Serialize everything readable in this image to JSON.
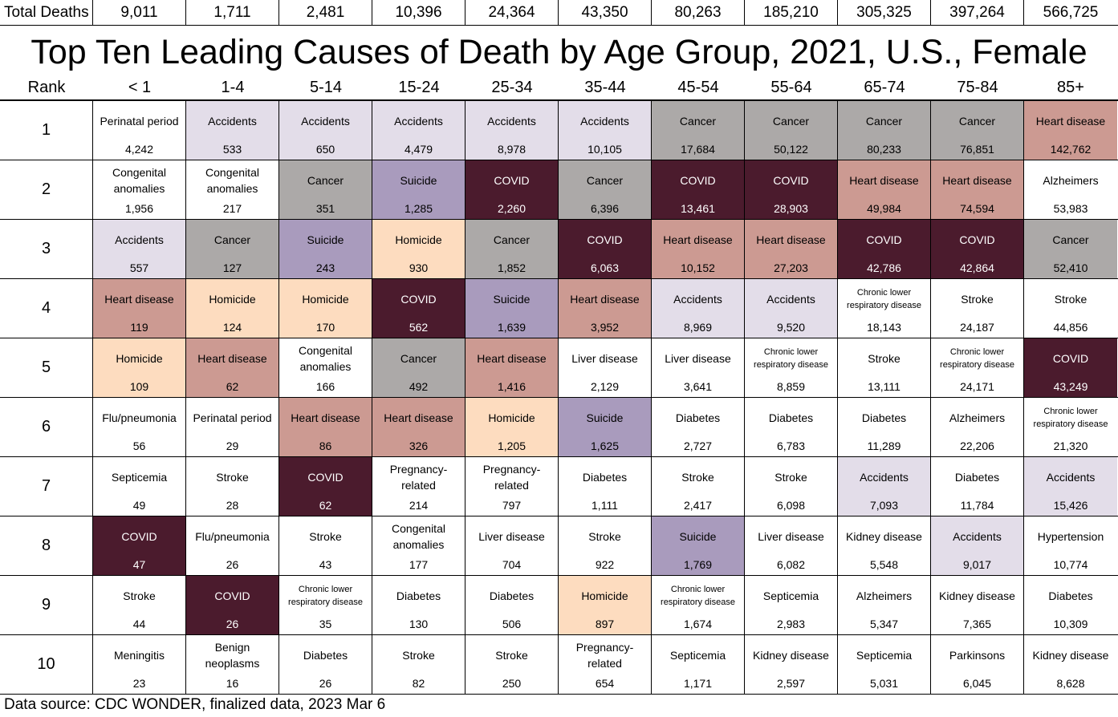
{
  "total_label": "Total Deaths",
  "title": "Top Ten Leading Causes of Death by Age Group, 2021, U.S., Female",
  "rank_header": "Rank",
  "source": "Data source: CDC WONDER, finalized data, 2023 Mar 6",
  "colors": {
    "Accidents": "#e3dde9",
    "Cancer": "#aca9a8",
    "Heart disease": "#cc9a92",
    "COVID": "#4b1b2d",
    "Suicide": "#a99bbd",
    "Homicide": "#fddcbf",
    "default": "#ffffff"
  },
  "chart_data": {
    "type": "table",
    "title": "Top Ten Leading Causes of Death by Age Group, 2021, U.S., Female",
    "age_groups": [
      "< 1",
      "1-4",
      "5-14",
      "15-24",
      "25-34",
      "35-44",
      "45-54",
      "55-64",
      "65-74",
      "75-84",
      "85+"
    ],
    "total_deaths": [
      "9,011",
      "1,711",
      "2,481",
      "10,396",
      "24,364",
      "43,350",
      "80,263",
      "185,210",
      "305,325",
      "397,264",
      "566,725"
    ],
    "ranks": [
      {
        "rank": "1",
        "cells": [
          {
            "cause": "Perinatal period",
            "deaths": "4,242"
          },
          {
            "cause": "Accidents",
            "deaths": "533"
          },
          {
            "cause": "Accidents",
            "deaths": "650"
          },
          {
            "cause": "Accidents",
            "deaths": "4,479"
          },
          {
            "cause": "Accidents",
            "deaths": "8,978"
          },
          {
            "cause": "Accidents",
            "deaths": "10,105"
          },
          {
            "cause": "Cancer",
            "deaths": "17,684"
          },
          {
            "cause": "Cancer",
            "deaths": "50,122"
          },
          {
            "cause": "Cancer",
            "deaths": "80,233"
          },
          {
            "cause": "Cancer",
            "deaths": "76,851"
          },
          {
            "cause": "Heart disease",
            "deaths": "142,762"
          }
        ]
      },
      {
        "rank": "2",
        "cells": [
          {
            "cause": "Congenital anomalies",
            "deaths": "1,956"
          },
          {
            "cause": "Congenital anomalies",
            "deaths": "217"
          },
          {
            "cause": "Cancer",
            "deaths": "351"
          },
          {
            "cause": "Suicide",
            "deaths": "1,285"
          },
          {
            "cause": "COVID",
            "deaths": "2,260"
          },
          {
            "cause": "Cancer",
            "deaths": "6,396"
          },
          {
            "cause": "COVID",
            "deaths": "13,461"
          },
          {
            "cause": "COVID",
            "deaths": "28,903"
          },
          {
            "cause": "Heart disease",
            "deaths": "49,984"
          },
          {
            "cause": "Heart disease",
            "deaths": "74,594"
          },
          {
            "cause": "Alzheimers",
            "deaths": "53,983"
          }
        ]
      },
      {
        "rank": "3",
        "cells": [
          {
            "cause": "Accidents",
            "deaths": "557"
          },
          {
            "cause": "Cancer",
            "deaths": "127"
          },
          {
            "cause": "Suicide",
            "deaths": "243"
          },
          {
            "cause": "Homicide",
            "deaths": "930"
          },
          {
            "cause": "Cancer",
            "deaths": "1,852"
          },
          {
            "cause": "COVID",
            "deaths": "6,063"
          },
          {
            "cause": "Heart disease",
            "deaths": "10,152"
          },
          {
            "cause": "Heart disease",
            "deaths": "27,203"
          },
          {
            "cause": "COVID",
            "deaths": "42,786"
          },
          {
            "cause": "COVID",
            "deaths": "42,864"
          },
          {
            "cause": "Cancer",
            "deaths": "52,410"
          }
        ]
      },
      {
        "rank": "4",
        "cells": [
          {
            "cause": "Heart disease",
            "deaths": "119"
          },
          {
            "cause": "Homicide",
            "deaths": "124"
          },
          {
            "cause": "Homicide",
            "deaths": "170"
          },
          {
            "cause": "COVID",
            "deaths": "562"
          },
          {
            "cause": "Suicide",
            "deaths": "1,639"
          },
          {
            "cause": "Heart disease",
            "deaths": "3,952"
          },
          {
            "cause": "Accidents",
            "deaths": "8,969"
          },
          {
            "cause": "Accidents",
            "deaths": "9,520"
          },
          {
            "cause": "Chronic lower respiratory disease",
            "deaths": "18,143"
          },
          {
            "cause": "Stroke",
            "deaths": "24,187"
          },
          {
            "cause": "Stroke",
            "deaths": "44,856"
          }
        ]
      },
      {
        "rank": "5",
        "cells": [
          {
            "cause": "Homicide",
            "deaths": "109"
          },
          {
            "cause": "Heart disease",
            "deaths": "62"
          },
          {
            "cause": "Congenital anomalies",
            "deaths": "166"
          },
          {
            "cause": "Cancer",
            "deaths": "492"
          },
          {
            "cause": "Heart disease",
            "deaths": "1,416"
          },
          {
            "cause": "Liver disease",
            "deaths": "2,129"
          },
          {
            "cause": "Liver disease",
            "deaths": "3,641"
          },
          {
            "cause": "Chronic lower respiratory disease",
            "deaths": "8,859"
          },
          {
            "cause": "Stroke",
            "deaths": "13,111"
          },
          {
            "cause": "Chronic lower respiratory disease",
            "deaths": "24,171"
          },
          {
            "cause": "COVID",
            "deaths": "43,249"
          }
        ]
      },
      {
        "rank": "6",
        "cells": [
          {
            "cause": "Flu/pneumonia",
            "deaths": "56"
          },
          {
            "cause": "Perinatal period",
            "deaths": "29"
          },
          {
            "cause": "Heart disease",
            "deaths": "86"
          },
          {
            "cause": "Heart disease",
            "deaths": "326"
          },
          {
            "cause": "Homicide",
            "deaths": "1,205"
          },
          {
            "cause": "Suicide",
            "deaths": "1,625"
          },
          {
            "cause": "Diabetes",
            "deaths": "2,727"
          },
          {
            "cause": "Diabetes",
            "deaths": "6,783"
          },
          {
            "cause": "Diabetes",
            "deaths": "11,289"
          },
          {
            "cause": "Alzheimers",
            "deaths": "22,206"
          },
          {
            "cause": "Chronic lower respiratory disease",
            "deaths": "21,320"
          }
        ]
      },
      {
        "rank": "7",
        "cells": [
          {
            "cause": "Septicemia",
            "deaths": "49"
          },
          {
            "cause": "Stroke",
            "deaths": "28"
          },
          {
            "cause": "COVID",
            "deaths": "62"
          },
          {
            "cause": "Pregnancy-related",
            "deaths": "214"
          },
          {
            "cause": "Pregnancy-related",
            "deaths": "797"
          },
          {
            "cause": "Diabetes",
            "deaths": "1,111"
          },
          {
            "cause": "Stroke",
            "deaths": "2,417"
          },
          {
            "cause": "Stroke",
            "deaths": "6,098"
          },
          {
            "cause": "Accidents",
            "deaths": "7,093"
          },
          {
            "cause": "Diabetes",
            "deaths": "11,784"
          },
          {
            "cause": "Accidents",
            "deaths": "15,426"
          }
        ]
      },
      {
        "rank": "8",
        "cells": [
          {
            "cause": "COVID",
            "deaths": "47"
          },
          {
            "cause": "Flu/pneumonia",
            "deaths": "26"
          },
          {
            "cause": "Stroke",
            "deaths": "43"
          },
          {
            "cause": "Congenital anomalies",
            "deaths": "177"
          },
          {
            "cause": "Liver disease",
            "deaths": "704"
          },
          {
            "cause": "Stroke",
            "deaths": "922"
          },
          {
            "cause": "Suicide",
            "deaths": "1,769"
          },
          {
            "cause": "Liver disease",
            "deaths": "6,082"
          },
          {
            "cause": "Kidney disease",
            "deaths": "5,548"
          },
          {
            "cause": "Accidents",
            "deaths": "9,017"
          },
          {
            "cause": "Hypertension",
            "deaths": "10,774"
          }
        ]
      },
      {
        "rank": "9",
        "cells": [
          {
            "cause": "Stroke",
            "deaths": "44"
          },
          {
            "cause": "COVID",
            "deaths": "26"
          },
          {
            "cause": "Chronic lower respiratory disease",
            "deaths": "35"
          },
          {
            "cause": "Diabetes",
            "deaths": "130"
          },
          {
            "cause": "Diabetes",
            "deaths": "506"
          },
          {
            "cause": "Homicide",
            "deaths": "897"
          },
          {
            "cause": "Chronic lower respiratory disease",
            "deaths": "1,674"
          },
          {
            "cause": "Septicemia",
            "deaths": "2,983"
          },
          {
            "cause": "Alzheimers",
            "deaths": "5,347"
          },
          {
            "cause": "Kidney disease",
            "deaths": "7,365"
          },
          {
            "cause": "Diabetes",
            "deaths": "10,309"
          }
        ]
      },
      {
        "rank": "10",
        "cells": [
          {
            "cause": "Meningitis",
            "deaths": "23"
          },
          {
            "cause": "Benign neoplasms",
            "deaths": "16"
          },
          {
            "cause": "Diabetes",
            "deaths": "26"
          },
          {
            "cause": "Stroke",
            "deaths": "82"
          },
          {
            "cause": "Stroke",
            "deaths": "250"
          },
          {
            "cause": "Pregnancy-related",
            "deaths": "654"
          },
          {
            "cause": "Septicemia",
            "deaths": "1,171"
          },
          {
            "cause": "Kidney disease",
            "deaths": "2,597"
          },
          {
            "cause": "Septicemia",
            "deaths": "5,031"
          },
          {
            "cause": "Parkinsons",
            "deaths": "6,045"
          },
          {
            "cause": "Kidney disease",
            "deaths": "8,628"
          }
        ]
      }
    ]
  }
}
